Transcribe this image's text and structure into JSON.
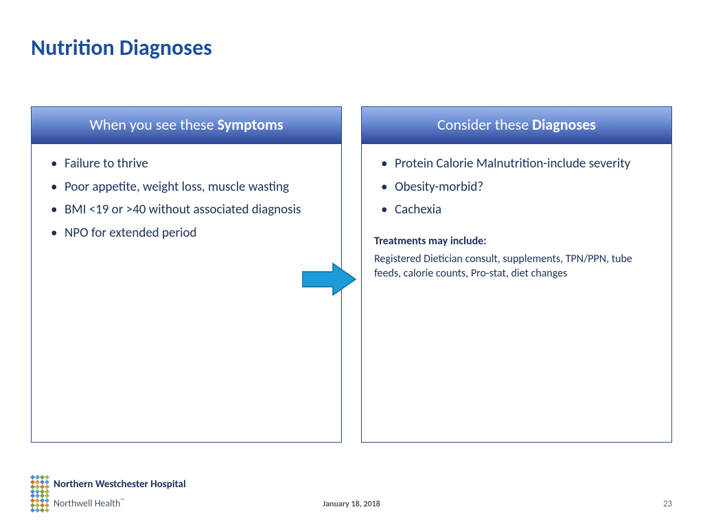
{
  "title": "Nutrition Diagnoses",
  "left_panel": {
    "header_prefix": "When you see these ",
    "header_bold": "Symptoms",
    "bullets": [
      "Failure to thrive",
      "Poor appetite, weight loss, muscle wasting",
      "BMI <19 or >40 without associated diagnosis",
      "NPO for extended period"
    ]
  },
  "right_panel": {
    "header_prefix": "Consider these ",
    "header_bold": "Diagnoses",
    "bullets": [
      "Protein Calorie Malnutrition-include severity",
      "Obesity-morbid?",
      "Cachexia"
    ],
    "treatments_label": "Treatments may include:",
    "treatments_text": "Registered Dietician consult, supplements, TPN/PPN, tube feeds, calorie counts, Pro-stat, diet changes"
  },
  "arrow": {
    "fill": "#1b9bd8",
    "stroke": "#0d6aa0"
  },
  "footer": {
    "org_line1": "Northern Westchester Hospital",
    "org_line2_text": "Northwell Health",
    "date": "January 18, 2018",
    "page": "23",
    "logo_colors": [
      "#4a8bc2",
      "#5aa0d0",
      "#7c9b3e",
      "#a3b84e",
      "#d07830",
      "#e0944a",
      "#4a8bc2",
      "#5aa0d0",
      "#7c9b3e",
      "#a3b84e",
      "#d07830",
      "#e0944a",
      "#4a8bc2",
      "#5aa0d0",
      "#7c9b3e",
      "#a3b84e"
    ]
  },
  "colors": {
    "title": "#1f4e97",
    "text": "#1a2e5a",
    "border": "#1f4e97"
  }
}
